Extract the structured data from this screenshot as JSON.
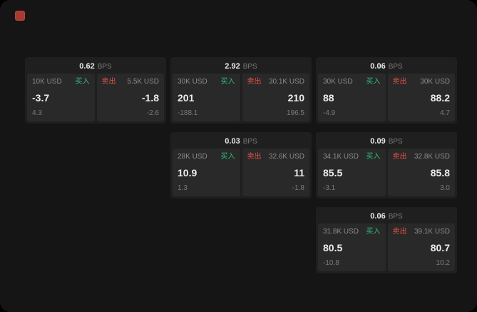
{
  "labels": {
    "buy": "买入",
    "sell": "卖出",
    "bps": "BPS"
  },
  "colors": {
    "buy_green": "#2fbd79",
    "sell_red": "#dd5148",
    "logo_red": "#a93a30"
  },
  "cards": [
    {
      "bps": "0.62",
      "buy": {
        "size": "10K USD",
        "price": "-3.7",
        "delta": "4.3"
      },
      "sell": {
        "size": "5.5K USD",
        "price": "-1.8",
        "delta": "-2.6"
      }
    },
    {
      "bps": "2.92",
      "buy": {
        "size": "30K USD",
        "price": "201",
        "delta": "-188.1"
      },
      "sell": {
        "size": "30.1K USD",
        "price": "210",
        "delta": "196.5"
      }
    },
    {
      "bps": "0.06",
      "buy": {
        "size": "30K USD",
        "price": "88",
        "delta": "-4.9"
      },
      "sell": {
        "size": "30K USD",
        "price": "88.2",
        "delta": "4.7"
      }
    },
    {
      "bps": "0.03",
      "buy": {
        "size": "28K USD",
        "price": "10.9",
        "delta": "1.3"
      },
      "sell": {
        "size": "32.6K USD",
        "price": "11",
        "delta": "-1.8"
      }
    },
    {
      "bps": "0.09",
      "buy": {
        "size": "34.1K USD",
        "price": "85.5",
        "delta": "-3.1"
      },
      "sell": {
        "size": "32.8K USD",
        "price": "85.8",
        "delta": "3.0"
      }
    },
    {
      "bps": "0.06",
      "buy": {
        "size": "31.8K USD",
        "price": "80.5",
        "delta": "-10.8"
      },
      "sell": {
        "size": "39.1K USD",
        "price": "80.7",
        "delta": "10.2"
      }
    }
  ]
}
